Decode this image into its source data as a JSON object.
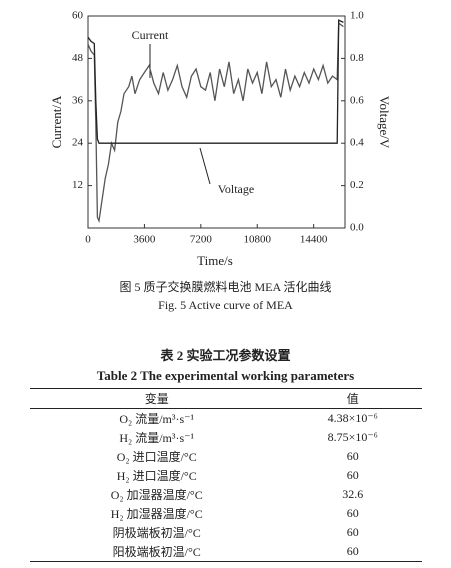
{
  "chart_data": {
    "type": "line",
    "xlabel": "Time/s",
    "ylabel": "Current/A",
    "y2label": "Voltage/V",
    "x": [
      0,
      200,
      400,
      500,
      600,
      700,
      900,
      1100,
      1300,
      1500,
      1700,
      1900,
      2100,
      2300,
      2600,
      2800,
      3000,
      3300,
      3600,
      3900,
      4200,
      4500,
      4800,
      5100,
      5400,
      5700,
      6000,
      6300,
      6600,
      6900,
      7200,
      7500,
      7800,
      8100,
      8400,
      8700,
      9000,
      9300,
      9600,
      9900,
      10200,
      10500,
      10800,
      11100,
      11400,
      11700,
      12000,
      12300,
      12600,
      12900,
      13200,
      13500,
      13800,
      14100,
      14400,
      14700,
      15000,
      15300,
      15600,
      15900,
      16000,
      16300
    ],
    "series": [
      {
        "name": "Current",
        "color": "#555555",
        "values": [
          52,
          50,
          49,
          30,
          3,
          2,
          8,
          14,
          18,
          24,
          22,
          30,
          33,
          38,
          40,
          43,
          38,
          42,
          44,
          46,
          41,
          38,
          44,
          39,
          42,
          46,
          40,
          37,
          43,
          45,
          40,
          39,
          44,
          36,
          45,
          40,
          47,
          38,
          42,
          36,
          45,
          41,
          44,
          38,
          47,
          40,
          42,
          37,
          45,
          39,
          43,
          40,
          44,
          41,
          45,
          42,
          46,
          41,
          43,
          42,
          58,
          57
        ]
      },
      {
        "name": "Voltage",
        "color": "#222222",
        "axis": "y2",
        "values": [
          0.9,
          0.88,
          0.87,
          0.6,
          0.42,
          0.4,
          0.4,
          0.4,
          0.4,
          0.4,
          0.4,
          0.4,
          0.4,
          0.4,
          0.4,
          0.4,
          0.4,
          0.4,
          0.4,
          0.4,
          0.4,
          0.4,
          0.4,
          0.4,
          0.4,
          0.4,
          0.4,
          0.4,
          0.4,
          0.4,
          0.4,
          0.4,
          0.4,
          0.4,
          0.4,
          0.4,
          0.4,
          0.4,
          0.4,
          0.4,
          0.4,
          0.4,
          0.4,
          0.4,
          0.4,
          0.4,
          0.4,
          0.4,
          0.4,
          0.4,
          0.4,
          0.4,
          0.4,
          0.4,
          0.4,
          0.4,
          0.4,
          0.4,
          0.4,
          0.4,
          0.98,
          0.97
        ]
      }
    ],
    "xlim": [
      0,
      16400
    ],
    "xticks": [
      0,
      3600,
      7200,
      10800,
      14400
    ],
    "ylim": [
      0,
      60
    ],
    "yticks": [
      12,
      24,
      36,
      48,
      60
    ],
    "y2lim": [
      0,
      1
    ],
    "y2ticks": [
      {
        "value": 0,
        "label": "0.0"
      },
      0.2,
      0.4,
      0.6,
      0.8,
      {
        "value": 1,
        "label": "1.0"
      }
    ],
    "grid": false,
    "caption_cn": "图 5  质子交换膜燃料电池 MEA 活化曲线",
    "caption_en": "Fig. 5  Active curve of MEA"
  },
  "table": {
    "title_cn": "表 2  实验工况参数设置",
    "title_en": "Table 2  The experimental working parameters",
    "header": [
      "变量",
      "值"
    ],
    "rows": [
      [
        "O₂ 流量/m³·s⁻¹",
        "4.38×10⁻⁶"
      ],
      [
        "H₂ 流量/m³·s⁻¹",
        "8.75×10⁻⁶"
      ],
      [
        "O₂ 进口温度/°C",
        "60"
      ],
      [
        "H₂ 进口温度/°C",
        "60"
      ],
      [
        "O₂ 加湿器温度/°C",
        "32.6"
      ],
      [
        "H₂ 加湿器温度/°C",
        "60"
      ],
      [
        "阴极端板初温/°C",
        "60"
      ],
      [
        "阳极端板初温/°C",
        "60"
      ]
    ]
  }
}
